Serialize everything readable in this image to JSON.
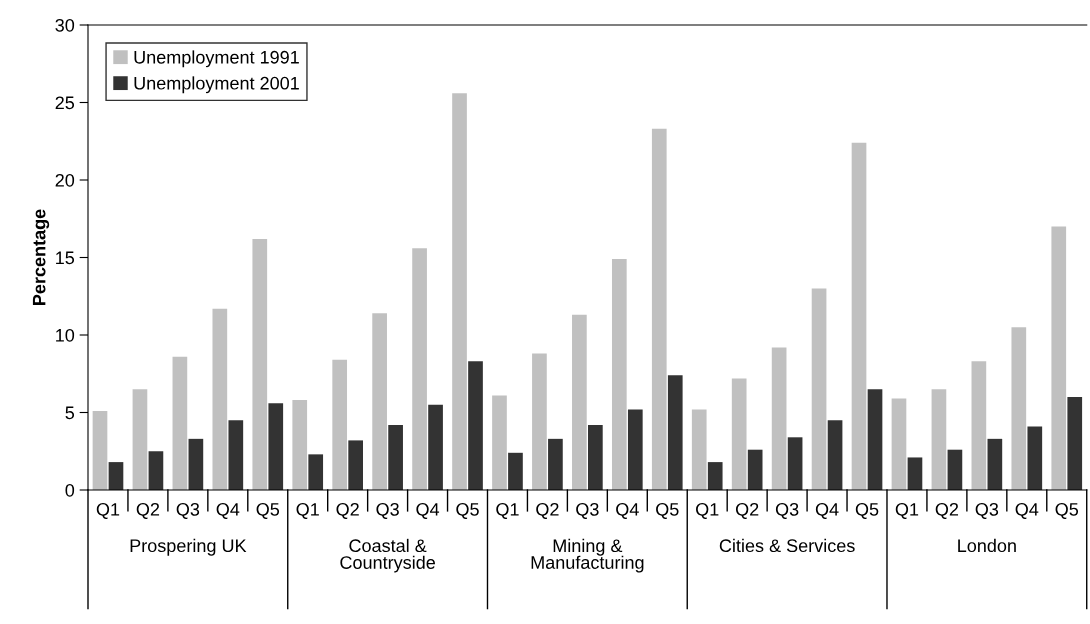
{
  "chart_data": {
    "type": "bar",
    "ylabel": "Percentage",
    "categories": [
      "Q1",
      "Q2",
      "Q3",
      "Q4",
      "Q5",
      "Q1",
      "Q2",
      "Q3",
      "Q4",
      "Q5",
      "Q1",
      "Q2",
      "Q3",
      "Q4",
      "Q5",
      "Q1",
      "Q2",
      "Q3",
      "Q4",
      "Q5",
      "Q1",
      "Q2",
      "Q3",
      "Q4",
      "Q5"
    ],
    "series": [
      {
        "name": "Unemployment 1991",
        "color": "#c0c0c0",
        "values": [
          5.1,
          6.5,
          8.6,
          11.7,
          16.2,
          5.8,
          8.4,
          11.4,
          15.6,
          25.6,
          6.1,
          8.8,
          11.3,
          14.9,
          23.3,
          5.2,
          7.2,
          9.2,
          13.0,
          22.4,
          5.9,
          6.5,
          8.3,
          10.5,
          17.0
        ]
      },
      {
        "name": "Unemployment 2001",
        "color": "#333333",
        "values": [
          1.8,
          2.5,
          3.3,
          4.5,
          5.6,
          2.3,
          3.2,
          4.2,
          5.5,
          8.3,
          2.4,
          3.3,
          4.2,
          5.2,
          7.4,
          1.8,
          2.6,
          3.4,
          4.5,
          6.5,
          2.1,
          2.6,
          3.3,
          4.1,
          6.0
        ]
      }
    ],
    "annotations": [
      "Prospering UK",
      "Coastal &\nCountryside",
      "Mining &\nManufacturing",
      "Cities & Services",
      "London"
    ],
    "ylim": [
      0,
      30
    ],
    "yticks": [
      0,
      5,
      10,
      15,
      20,
      25,
      30
    ],
    "grid": false,
    "legend": "top left"
  }
}
